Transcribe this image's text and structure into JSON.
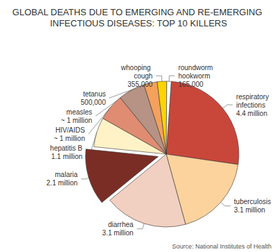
{
  "chart_data": {
    "type": "pie",
    "title": "GLOBAL DEATHS DUE TO EMERGING AND RE-EMERGING INFECTIOUS DISEASES: TOP 10 KILLERS",
    "categories": [
      "respiratory infections",
      "tuberculosis",
      "diarrhea",
      "malaria",
      "hepatitis B",
      "HIV/AIDS",
      "measles",
      "tetanus",
      "whooping cough",
      "roundworm hookworm"
    ],
    "values": [
      4400000,
      3100000,
      3100000,
      2100000,
      1100000,
      1000000,
      1000000,
      500000,
      355000,
      165000
    ],
    "value_labels": [
      "4.4 million",
      "3.1 million",
      "3.1 million",
      "2.1 million",
      "1.1 million",
      "~ 1 million",
      "~ 1 million",
      "500,000",
      "355,000",
      "165,000"
    ],
    "colors": [
      "#c8473a",
      "#fcd39c",
      "#f1cfc1",
      "#7a2d24",
      "#fff2c6",
      "#df8c72",
      "#b69384",
      "#f3a15c",
      "#fcd400",
      "#ffffff"
    ],
    "data_labels": true,
    "annotations": [
      "Source: National Institutes of Health"
    ]
  }
}
